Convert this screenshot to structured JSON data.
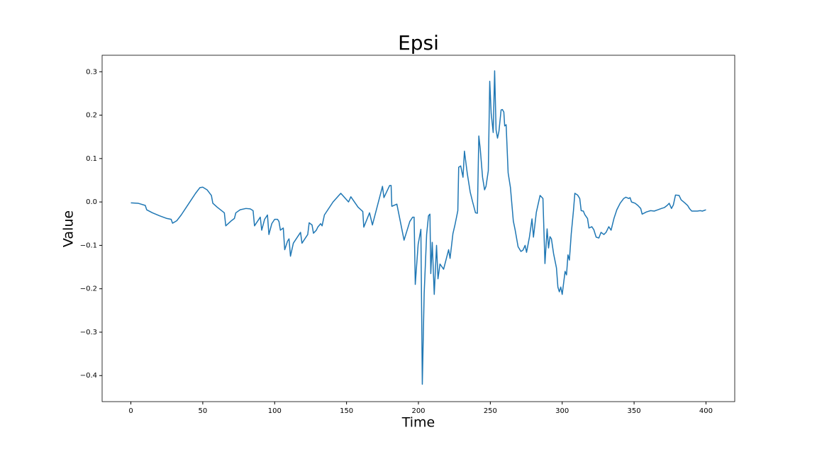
{
  "chart_data": {
    "type": "line",
    "title": "Epsi",
    "x_label": "Time",
    "y_label": "Value",
    "color": "#1f77b4",
    "xlim": [
      -20,
      420
    ],
    "ylim": [
      -0.46,
      0.338
    ],
    "xticks": [
      0,
      50,
      100,
      150,
      200,
      250,
      300,
      350,
      400
    ],
    "yticks": [
      0.3,
      0.2,
      0.1,
      {
        "value": 0,
        "label": "0.0"
      },
      {
        "value": -0.1,
        "label": "−0.1"
      },
      {
        "value": -0.2,
        "label": "−0.2"
      },
      {
        "value": -0.3,
        "label": "−0.3"
      },
      {
        "value": -0.4,
        "label": "−0.4"
      }
    ],
    "x": [
      0,
      5,
      10,
      11,
      15,
      20,
      25,
      28,
      29,
      32,
      35,
      40,
      45,
      48,
      50,
      53,
      56,
      57,
      60,
      65,
      66,
      70,
      72,
      73,
      76,
      80,
      83,
      85,
      86,
      88,
      90,
      91,
      93,
      95,
      96,
      98,
      100,
      102,
      103,
      104,
      106,
      107,
      109,
      110,
      111,
      113,
      115,
      117,
      118,
      119,
      121,
      123,
      124,
      126,
      127,
      129,
      130,
      132,
      133,
      134.6,
      140.6,
      146,
      151.4,
      153,
      158,
      161.3,
      162,
      166,
      168,
      175,
      176,
      180,
      181,
      181.5,
      185,
      190,
      194,
      196,
      197,
      197.8,
      199.8,
      201.7,
      202.7,
      204,
      205.7,
      207,
      208,
      208.6,
      209.6,
      211,
      212.6,
      213.6,
      215,
      217.5,
      221,
      222,
      224,
      225.4,
      227.4,
      228,
      229.4,
      231,
      232,
      234,
      236,
      237.7,
      239.7,
      241,
      242,
      243,
      244.6,
      246,
      247,
      248.6,
      249.6,
      250.6,
      252,
      253,
      254,
      255,
      256,
      257.5,
      258.4,
      259.4,
      260,
      261,
      262.4,
      264,
      266,
      267.3,
      269.3,
      271.3,
      272.7,
      274.2,
      275.2,
      277.2,
      279,
      280,
      282,
      284.6,
      286.6,
      288,
      289.5,
      290.5,
      291.5,
      292.5,
      294,
      296,
      297,
      298,
      299,
      300,
      302,
      303,
      304,
      305,
      306.3,
      307.8,
      308.8,
      310.7,
      312.2,
      313.2,
      314.7,
      315.7,
      317.6,
      318.6,
      320.6,
      322,
      323.6,
      325.5,
      327,
      329,
      330.5,
      332.4,
      334,
      336,
      338,
      340.3,
      342.8,
      344.3,
      346.2,
      347.2,
      348.2,
      350.7,
      352.6,
      354.6,
      355.6,
      358.6,
      361.5,
      364,
      366.5,
      369,
      371,
      373,
      374.4,
      376,
      377.3,
      378.8,
      381.3,
      382.7,
      385.2,
      387.2,
      388.7,
      390.1,
      394,
      396,
      397.5,
      400
    ],
    "values": [
      -0.002,
      -0.003,
      -0.008,
      -0.018,
      -0.025,
      -0.032,
      -0.038,
      -0.04,
      -0.049,
      -0.043,
      -0.03,
      -0.005,
      0.02,
      0.033,
      0.034,
      0.028,
      0.015,
      -0.003,
      -0.012,
      -0.025,
      -0.055,
      -0.043,
      -0.038,
      -0.025,
      -0.018,
      -0.015,
      -0.016,
      -0.02,
      -0.055,
      -0.045,
      -0.035,
      -0.065,
      -0.04,
      -0.03,
      -0.075,
      -0.05,
      -0.04,
      -0.04,
      -0.045,
      -0.065,
      -0.06,
      -0.11,
      -0.09,
      -0.085,
      -0.125,
      -0.095,
      -0.085,
      -0.075,
      -0.07,
      -0.095,
      -0.085,
      -0.075,
      -0.048,
      -0.053,
      -0.072,
      -0.065,
      -0.058,
      -0.05,
      -0.055,
      -0.03,
      0.0,
      0.02,
      0.0,
      0.012,
      -0.012,
      -0.022,
      -0.058,
      -0.025,
      -0.053,
      0.036,
      0.01,
      0.038,
      0.038,
      -0.01,
      -0.005,
      -0.088,
      -0.045,
      -0.035,
      -0.035,
      -0.19,
      -0.098,
      -0.063,
      -0.42,
      -0.21,
      -0.075,
      -0.032,
      -0.028,
      -0.165,
      -0.093,
      -0.213,
      -0.1,
      -0.177,
      -0.143,
      -0.155,
      -0.11,
      -0.13,
      -0.073,
      -0.053,
      -0.02,
      0.08,
      0.083,
      0.057,
      0.117,
      0.065,
      0.023,
      0.0,
      -0.025,
      -0.026,
      0.152,
      0.122,
      0.057,
      0.028,
      0.036,
      0.072,
      0.278,
      0.204,
      0.16,
      0.302,
      0.166,
      0.147,
      0.163,
      0.212,
      0.213,
      0.207,
      0.175,
      0.178,
      0.067,
      0.033,
      -0.044,
      -0.065,
      -0.103,
      -0.114,
      -0.111,
      -0.1,
      -0.116,
      -0.081,
      -0.039,
      -0.081,
      -0.024,
      0.015,
      0.008,
      -0.142,
      -0.062,
      -0.106,
      -0.08,
      -0.085,
      -0.119,
      -0.152,
      -0.196,
      -0.207,
      -0.196,
      -0.213,
      -0.16,
      -0.168,
      -0.122,
      -0.134,
      -0.073,
      -0.021,
      0.02,
      0.016,
      0.008,
      -0.02,
      -0.021,
      -0.029,
      -0.038,
      -0.06,
      -0.057,
      -0.064,
      -0.081,
      -0.083,
      -0.07,
      -0.075,
      -0.07,
      -0.057,
      -0.065,
      -0.038,
      -0.018,
      -0.003,
      0.008,
      0.011,
      0.008,
      0.01,
      0.0,
      -0.003,
      -0.008,
      -0.015,
      -0.028,
      -0.023,
      -0.02,
      -0.021,
      -0.018,
      -0.015,
      -0.013,
      -0.008,
      -0.003,
      -0.015,
      -0.007,
      0.016,
      0.015,
      0.005,
      -0.002,
      -0.008,
      -0.016,
      -0.021,
      -0.021,
      -0.02,
      -0.021,
      -0.018
    ]
  }
}
